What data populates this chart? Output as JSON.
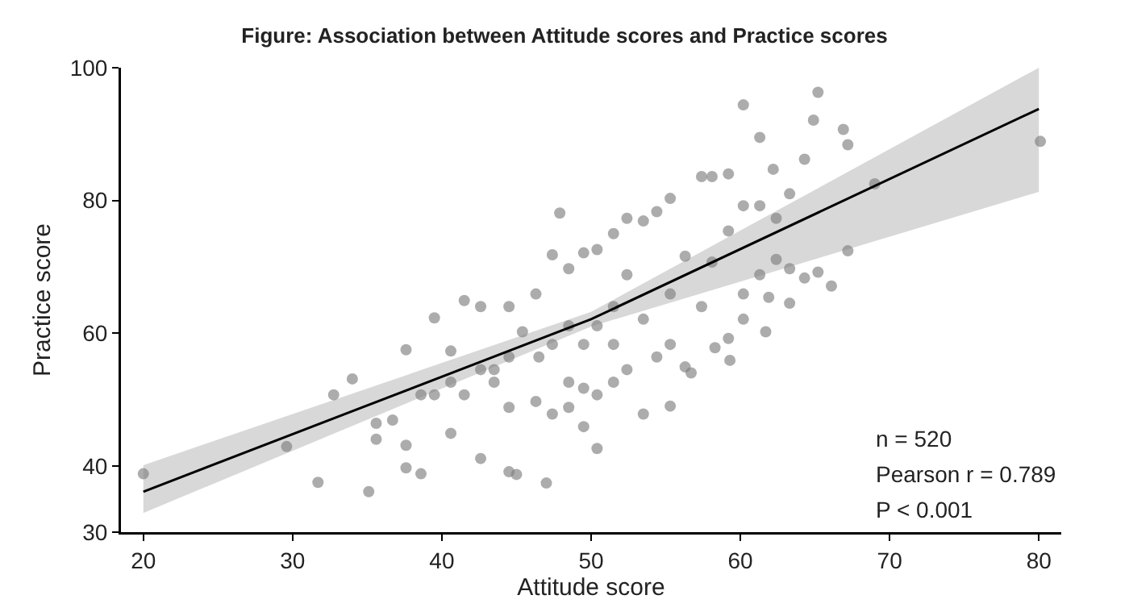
{
  "chart_data": {
    "type": "scatter",
    "title": "Figure: Association between Attitude scores and Practice scores",
    "xlabel": "Attitude score",
    "ylabel": "Practice score",
    "xlim": [
      18.5,
      81.5
    ],
    "ylim": [
      30,
      100
    ],
    "xticks": [
      20,
      30,
      40,
      50,
      60,
      70,
      80
    ],
    "yticks": [
      30,
      40,
      60,
      80,
      100
    ],
    "grid": false,
    "marker": "circle",
    "annotations": [
      "n = 520",
      "Pearson r = 0.789",
      "P < 0.001"
    ],
    "series": [
      {
        "color": "#7f7f7f",
        "x": [
          20.0,
          29.6,
          32.75,
          34.0,
          35.1,
          31.7,
          35.6,
          37.6,
          37.6,
          37.6,
          38.6,
          39.5,
          40.6,
          40.6,
          41.5,
          42.6,
          42.6,
          44.5,
          45.0,
          47.0,
          47.9,
          47.4,
          44.5,
          44.5,
          43.5,
          46.3,
          46.3,
          47.4,
          48.5,
          48.5,
          49.5,
          50.4,
          49.5,
          50.4,
          51.5,
          52.4,
          53.5,
          53.5,
          54.4,
          55.3,
          55.3,
          56.3,
          56.7,
          57.4,
          58.1,
          59.2,
          60.2,
          61.3,
          62.2,
          63.3,
          64.3,
          65.2,
          64.9,
          66.9,
          67.2,
          69.0,
          80.1,
          67.2,
          66.1,
          65.2,
          64.3,
          63.3,
          61.7,
          60.2,
          59.3,
          58.3,
          60.2,
          61.3,
          62.4,
          62.4,
          61.3,
          60.2,
          59.2,
          58.1,
          57.4,
          56.3,
          55.3,
          55.3,
          54.4,
          53.5,
          52.4,
          52.4,
          51.5,
          51.5,
          50.4,
          49.5,
          48.5,
          47.4,
          46.5,
          45.4,
          44.5,
          43.5,
          42.6,
          41.5,
          40.6,
          39.5,
          38.6,
          36.7,
          35.6,
          49.5,
          50.4,
          48.5,
          51.5,
          59.2,
          61.9,
          63.3
        ],
        "values": [
          38.8,
          42.9,
          50.7,
          53.1,
          36.1,
          37.5,
          46.4,
          57.5,
          43.1,
          39.7,
          38.8,
          62.3,
          57.3,
          44.9,
          64.9,
          64.0,
          41.1,
          39.1,
          38.7,
          37.4,
          78.1,
          71.8,
          64.0,
          48.8,
          52.6,
          65.9,
          49.7,
          47.8,
          69.7,
          52.6,
          45.9,
          42.6,
          72.1,
          72.6,
          75.0,
          77.3,
          76.9,
          47.8,
          78.3,
          80.3,
          49.0,
          54.9,
          54.0,
          83.6,
          83.6,
          84.0,
          94.4,
          89.5,
          84.7,
          81.0,
          86.2,
          96.3,
          92.1,
          90.7,
          88.4,
          82.5,
          88.9,
          72.4,
          67.1,
          69.2,
          68.3,
          64.5,
          60.2,
          62.1,
          55.9,
          57.8,
          65.9,
          68.8,
          71.1,
          77.3,
          79.2,
          79.2,
          75.4,
          70.7,
          64.0,
          71.6,
          65.9,
          58.3,
          56.4,
          62.1,
          68.8,
          54.5,
          64.0,
          58.3,
          61.1,
          58.3,
          61.1,
          58.3,
          56.4,
          60.2,
          56.4,
          54.5,
          54.5,
          50.7,
          52.6,
          50.7,
          50.7,
          46.9,
          44.0,
          51.7,
          50.7,
          48.8,
          52.6,
          59.2,
          65.4,
          69.7
        ]
      },
      {
        "type": "line",
        "color": "#000000",
        "marker": "none",
        "x": [
          20,
          50,
          80
        ],
        "values": [
          36.1,
          62.1,
          93.8
        ],
        "lower": [
          32.9,
          61.0,
          81.3
        ],
        "upper": [
          40.1,
          63.2,
          100
        ]
      }
    ]
  }
}
